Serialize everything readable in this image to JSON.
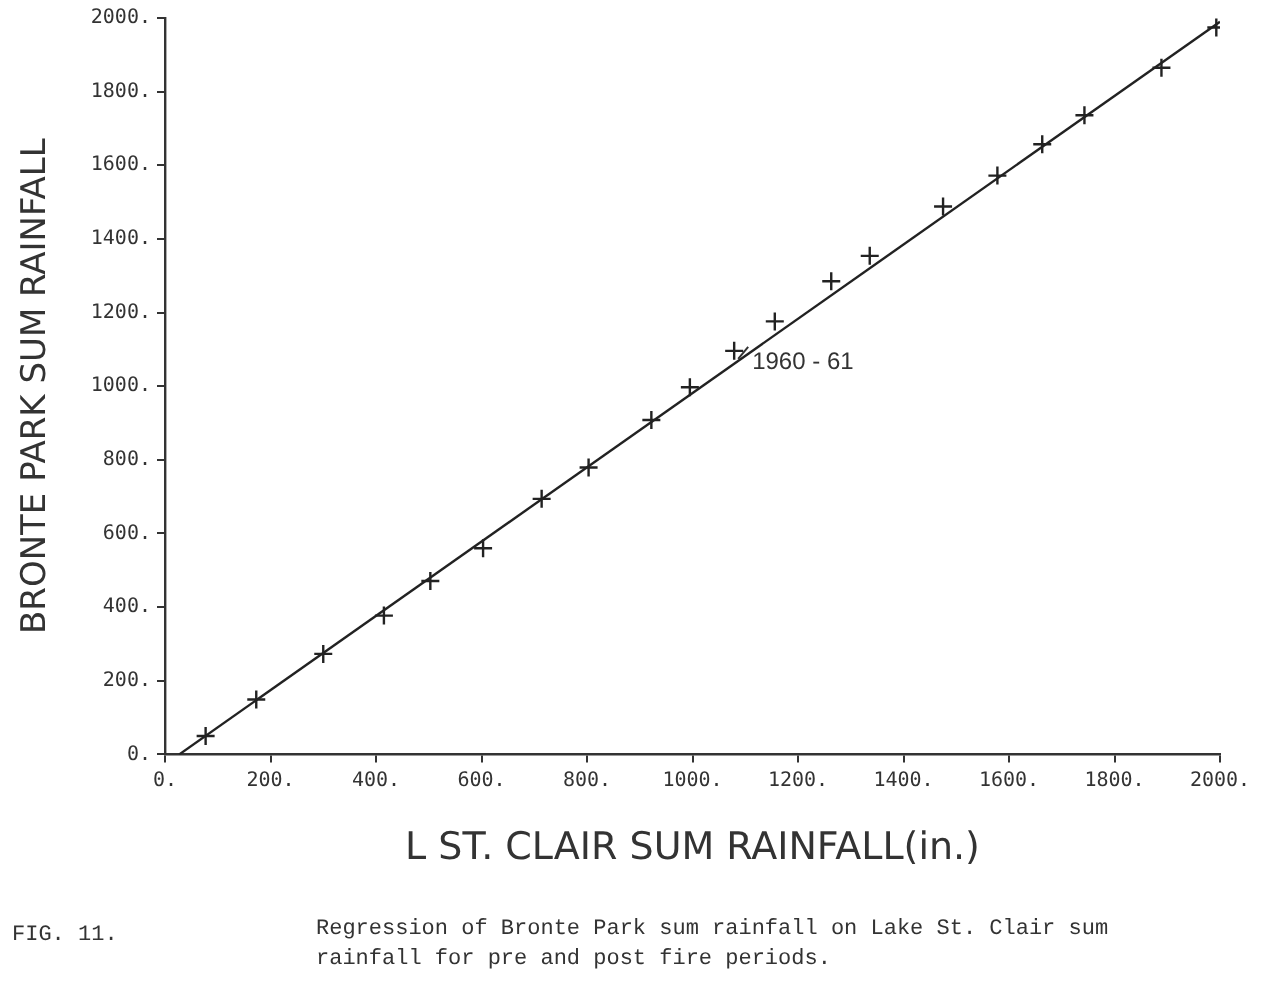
{
  "chart_data": {
    "type": "scatter",
    "xlabel": "L ST. CLAIR SUM RAINFALL(in.)",
    "ylabel": "BRONTE PARK SUM RAINFALL",
    "series": [
      {
        "color": "#222222",
        "marker": "cross",
        "x": [
          77,
          173,
          300,
          415,
          503,
          603,
          714,
          803,
          922,
          995,
          1079,
          1156,
          1263,
          1336,
          1475,
          1578,
          1663,
          1743,
          1889,
          1993
        ],
        "values": [
          50,
          149,
          273,
          377,
          471,
          560,
          694,
          779,
          908,
          997,
          1096,
          1176,
          1285,
          1354,
          1488,
          1572,
          1657,
          1736,
          1865,
          1974
        ]
      },
      {
        "type": "line",
        "color": "#222222",
        "marker": "none",
        "line_style": "solid",
        "x": [
          27,
          2000
        ],
        "values": [
          0,
          1990
        ]
      }
    ],
    "xlim": [
      0,
      2000
    ],
    "ylim": [
      0,
      2000
    ],
    "xticks": [
      {
        "value": 0,
        "label": "0."
      },
      {
        "value": 200,
        "label": "200."
      },
      {
        "value": 400,
        "label": "400."
      },
      {
        "value": 600,
        "label": "600."
      },
      {
        "value": 800,
        "label": "800."
      },
      {
        "value": 1000,
        "label": "1000."
      },
      {
        "value": 1200,
        "label": "1200."
      },
      {
        "value": 1400,
        "label": "1400."
      },
      {
        "value": 1600,
        "label": "1600."
      },
      {
        "value": 1800,
        "label": "1800."
      },
      {
        "value": 2000,
        "label": "2000."
      }
    ],
    "yticks": [
      {
        "value": 0,
        "label": "0."
      },
      {
        "value": 200,
        "label": "200."
      },
      {
        "value": 400,
        "label": "400."
      },
      {
        "value": 600,
        "label": "600."
      },
      {
        "value": 800,
        "label": "800."
      },
      {
        "value": 1000,
        "label": "1000."
      },
      {
        "value": 1200,
        "label": "1200."
      },
      {
        "value": 1400,
        "label": "1400."
      },
      {
        "value": 1600,
        "label": "1600."
      },
      {
        "value": 1800,
        "label": "1800."
      },
      {
        "value": 2000,
        "label": "2000."
      }
    ],
    "grid": false,
    "legend": false,
    "annotations": [
      {
        "text": "1960 - 61",
        "x": 1079,
        "y": 1096
      },
      "FIG. 11.",
      "Regression of Bronte Park sum rainfall on Lake St. Clair sum rainfall for pre and post fire periods."
    ]
  }
}
